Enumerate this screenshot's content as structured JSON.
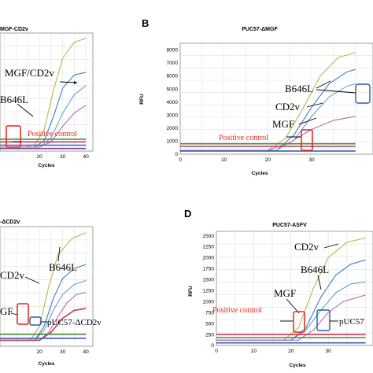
{
  "colors": {
    "positive_box": "#e8231f",
    "sample_box": "#2a5d9a",
    "positive_text": "#e8231f",
    "series": [
      "#b5b84a",
      "#3f7fbf",
      "#6aa1c4",
      "#b56ab5",
      "#c23a55",
      "#4a8a3a",
      "#3a5fb0",
      "#7a3f9a"
    ]
  },
  "chart_data": [
    {
      "type": "line",
      "panel_letter": "",
      "title": "MGF-CD2v",
      "xlabel": "Cycles",
      "ylabel": "",
      "xlim": [
        0,
        40
      ],
      "ylim": [
        0,
        9000
      ],
      "xticks": [
        "20",
        "30",
        "40"
      ],
      "yticks": [],
      "grid": true,
      "annotations": [
        {
          "text": "MGF/CD2v"
        },
        {
          "text": "B646L"
        },
        {
          "text": "Positive  control",
          "positive": true
        }
      ],
      "series": [
        {
          "values": [
            [
              0,
              300
            ],
            [
              14,
              300
            ],
            [
              18,
              500
            ],
            [
              22,
              1600
            ],
            [
              26,
              4600
            ],
            [
              30,
              7100
            ],
            [
              35,
              8300
            ],
            [
              40,
              8600
            ]
          ]
        },
        {
          "values": [
            [
              0,
              300
            ],
            [
              18,
              300
            ],
            [
              22,
              800
            ],
            [
              26,
              2600
            ],
            [
              30,
              4800
            ],
            [
              35,
              5800
            ],
            [
              40,
              6000
            ]
          ]
        },
        {
          "values": [
            [
              0,
              300
            ],
            [
              20,
              300
            ],
            [
              25,
              1000
            ],
            [
              30,
              2900
            ],
            [
              35,
              4300
            ],
            [
              40,
              5000
            ]
          ]
        },
        {
          "values": [
            [
              0,
              300
            ],
            [
              20,
              300
            ],
            [
              25,
              700
            ],
            [
              30,
              1900
            ],
            [
              35,
              2900
            ],
            [
              40,
              3500
            ]
          ]
        },
        {
          "values": [
            [
              0,
              700
            ],
            [
              40,
              700
            ]
          ]
        },
        {
          "values": [
            [
              0,
              900
            ],
            [
              40,
              900
            ]
          ]
        },
        {
          "values": [
            [
              0,
              450
            ],
            [
              40,
              450
            ]
          ]
        },
        {
          "values": [
            [
              0,
              200
            ],
            [
              40,
              200
            ]
          ]
        }
      ]
    },
    {
      "type": "line",
      "panel_letter": "B",
      "title": "PUC57-ΔMGF",
      "xlabel": "Cycles",
      "ylabel": "RFU",
      "xlim": [
        0,
        40
      ],
      "ylim": [
        0,
        8500
      ],
      "xticks": [
        "0",
        "10",
        "20",
        "30"
      ],
      "yticks": [
        "0",
        "1000",
        "2000",
        "3000",
        "4000",
        "5000",
        "6000",
        "7000",
        "8000"
      ],
      "grid": true,
      "annotations": [
        {
          "text": "B646L"
        },
        {
          "text": "CD2v"
        },
        {
          "text": "MGF"
        },
        {
          "text": "Positive  control",
          "positive": true
        }
      ],
      "series": [
        {
          "values": [
            [
              0,
              300
            ],
            [
              20,
              300
            ],
            [
              24,
              1200
            ],
            [
              28,
              3500
            ],
            [
              32,
              6000
            ],
            [
              36,
              7400
            ],
            [
              40,
              7800
            ]
          ]
        },
        {
          "values": [
            [
              0,
              300
            ],
            [
              22,
              300
            ],
            [
              26,
              1500
            ],
            [
              30,
              3600
            ],
            [
              34,
              5400
            ],
            [
              38,
              6300
            ],
            [
              40,
              6500
            ]
          ]
        },
        {
          "values": [
            [
              0,
              300
            ],
            [
              22,
              300
            ],
            [
              26,
              1100
            ],
            [
              30,
              2900
            ],
            [
              34,
              4400
            ],
            [
              38,
              5200
            ],
            [
              40,
              5400
            ]
          ]
        },
        {
          "values": [
            [
              0,
              300
            ],
            [
              20,
              300
            ],
            [
              25,
              900
            ],
            [
              30,
              1900
            ],
            [
              35,
              2600
            ],
            [
              40,
              2900
            ]
          ]
        },
        {
          "values": [
            [
              0,
              600
            ],
            [
              40,
              600
            ]
          ]
        },
        {
          "values": [
            [
              0,
              800
            ],
            [
              40,
              800
            ]
          ]
        },
        {
          "values": [
            [
              0,
              250
            ],
            [
              40,
              250
            ]
          ]
        }
      ]
    },
    {
      "type": "line",
      "panel_letter": "",
      "title": "-ΔCD2v",
      "xlabel": "Cycles",
      "ylabel": "",
      "xlim": [
        0,
        40
      ],
      "ylim": [
        0,
        3000
      ],
      "xticks": [
        "20",
        "30",
        "40"
      ],
      "yticks": [],
      "grid": true,
      "annotations": [
        {
          "text": "B646L"
        },
        {
          "text": "CD2v"
        },
        {
          "text": "GF"
        },
        {
          "text": "pUC57-ΔCD2v"
        }
      ],
      "series": [
        {
          "values": [
            [
              0,
              150
            ],
            [
              16,
              150
            ],
            [
              20,
              500
            ],
            [
              24,
              1500
            ],
            [
              28,
              2300
            ],
            [
              34,
              2700
            ],
            [
              40,
              2850
            ]
          ]
        },
        {
          "values": [
            [
              0,
              150
            ],
            [
              18,
              150
            ],
            [
              22,
              500
            ],
            [
              26,
              1200
            ],
            [
              30,
              1700
            ],
            [
              35,
              1950
            ],
            [
              40,
              2050
            ]
          ]
        },
        {
          "values": [
            [
              0,
              150
            ],
            [
              18,
              150
            ],
            [
              22,
              400
            ],
            [
              26,
              900
            ],
            [
              30,
              1300
            ],
            [
              35,
              1550
            ],
            [
              40,
              1650
            ]
          ]
        },
        {
          "values": [
            [
              0,
              150
            ],
            [
              20,
              150
            ],
            [
              24,
              350
            ],
            [
              28,
              750
            ],
            [
              32,
              1100
            ],
            [
              36,
              1300
            ],
            [
              40,
              1350
            ]
          ]
        },
        {
          "values": [
            [
              0,
              150
            ],
            [
              20,
              150
            ],
            [
              25,
              350
            ],
            [
              30,
              700
            ],
            [
              35,
              900
            ],
            [
              40,
              950
            ]
          ]
        },
        {
          "values": [
            [
              0,
              300
            ],
            [
              40,
              300
            ]
          ]
        },
        {
          "values": [
            [
              0,
              200
            ],
            [
              40,
              200
            ]
          ]
        }
      ]
    },
    {
      "type": "line",
      "panel_letter": "D",
      "title": "PUC57-ASFV",
      "xlabel": "Cycles",
      "ylabel": "RFU",
      "xlim": [
        0,
        40
      ],
      "ylim": [
        0,
        2600
      ],
      "xticks": [
        "0",
        "10",
        "20",
        "30"
      ],
      "yticks": [
        "0",
        "250",
        "500",
        "750",
        "1000",
        "1250",
        "1500",
        "1750",
        "2000",
        "2250",
        "2500"
      ],
      "grid": true,
      "annotations": [
        {
          "text": "CD2v"
        },
        {
          "text": "B646L"
        },
        {
          "text": "MGF"
        },
        {
          "text": "Positive  control",
          "positive": true
        },
        {
          "text": "pUC57"
        }
      ],
      "series": [
        {
          "values": [
            [
              0,
              120
            ],
            [
              18,
              120
            ],
            [
              22,
              400
            ],
            [
              26,
              1300
            ],
            [
              30,
              2000
            ],
            [
              35,
              2350
            ],
            [
              40,
              2450
            ]
          ]
        },
        {
          "values": [
            [
              0,
              120
            ],
            [
              20,
              120
            ],
            [
              24,
              400
            ],
            [
              28,
              1100
            ],
            [
              32,
              1600
            ],
            [
              36,
              1850
            ],
            [
              40,
              1950
            ]
          ]
        },
        {
          "values": [
            [
              0,
              120
            ],
            [
              20,
              120
            ],
            [
              24,
              350
            ],
            [
              28,
              800
            ],
            [
              32,
              1200
            ],
            [
              36,
              1400
            ],
            [
              40,
              1450
            ]
          ]
        },
        {
          "values": [
            [
              0,
              120
            ],
            [
              22,
              120
            ],
            [
              26,
              350
            ],
            [
              30,
              750
            ],
            [
              34,
              1000
            ],
            [
              38,
              1100
            ],
            [
              40,
              1150
            ]
          ]
        },
        {
          "values": [
            [
              0,
              250
            ],
            [
              40,
              250
            ]
          ]
        },
        {
          "values": [
            [
              0,
              180
            ],
            [
              40,
              180
            ]
          ]
        },
        {
          "values": [
            [
              0,
              60
            ],
            [
              40,
              60
            ]
          ]
        }
      ]
    }
  ]
}
